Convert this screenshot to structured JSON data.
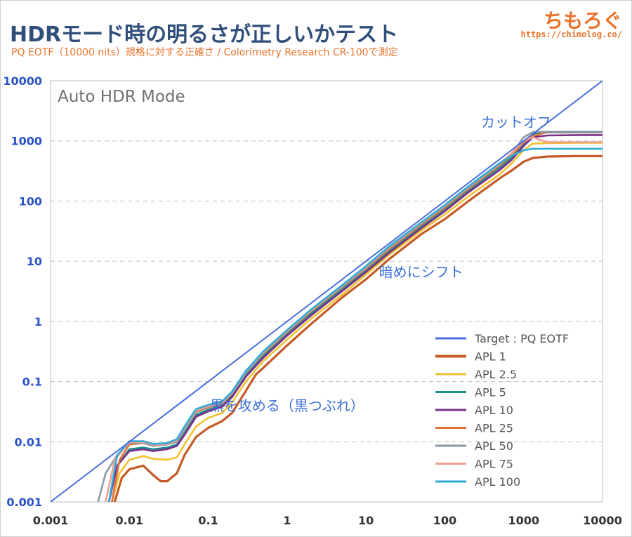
{
  "header": {
    "title": "HDRモード時の明るさが正しいかテスト",
    "subtitle": "PQ EOTF（10000 nits）規格に対する正確さ / Colorimetry Research CR-100で測定",
    "brand": "ちもろぐ",
    "brand_url": "https://chimolog.co/"
  },
  "colors": {
    "target": "#4a6fdc",
    "apl1": "#c45a25",
    "apl2_5": "#f2c12e",
    "apl5": "#1a8c8c",
    "apl10": "#7a2f8a",
    "apl25": "#e0733a",
    "apl50": "#8a98a8",
    "apl75": "#f0a090",
    "apl100": "#2eaad8",
    "annotation": "#3a6fd8",
    "tick": "#2a52c8"
  },
  "chart_data": {
    "type": "line",
    "panel_label": "Auto HDR Mode",
    "x_scale": "log",
    "y_scale": "log",
    "xlim": [
      0.001,
      10000
    ],
    "ylim": [
      0.001,
      10000
    ],
    "grid": true,
    "legend_position": "bottom-right",
    "x_ticks": [
      "0.001",
      "0.01",
      "0.1",
      "1",
      "10",
      "100",
      "1000",
      "10000"
    ],
    "y_ticks": [
      "0.001",
      "0.01",
      "0.1",
      "1",
      "10",
      "100",
      "1000",
      "10000"
    ],
    "annotations": [
      {
        "text": "カットオフ",
        "x": 800,
        "y": 1700
      },
      {
        "text": "暗めにシフト",
        "x": 50,
        "y": 5.5
      },
      {
        "text": "黒を攻める（黒つぶれ）",
        "x": 1.0,
        "y": 0.033
      }
    ],
    "series": [
      {
        "name": "Target : PQ EOTF",
        "key": "target",
        "points": [
          [
            0.001,
            0.001
          ],
          [
            10000,
            10000
          ]
        ]
      },
      {
        "name": "APL 1",
        "key": "apl1",
        "points": [
          [
            0.0065,
            0.001
          ],
          [
            0.008,
            0.0025
          ],
          [
            0.01,
            0.0035
          ],
          [
            0.015,
            0.004
          ],
          [
            0.02,
            0.0028
          ],
          [
            0.025,
            0.0022
          ],
          [
            0.03,
            0.0022
          ],
          [
            0.04,
            0.003
          ],
          [
            0.05,
            0.006
          ],
          [
            0.07,
            0.012
          ],
          [
            0.1,
            0.017
          ],
          [
            0.15,
            0.022
          ],
          [
            0.2,
            0.03
          ],
          [
            0.3,
            0.07
          ],
          [
            0.4,
            0.13
          ],
          [
            0.5,
            0.17
          ],
          [
            1,
            0.4
          ],
          [
            2,
            0.9
          ],
          [
            5,
            2.5
          ],
          [
            10,
            5
          ],
          [
            20,
            11
          ],
          [
            50,
            28
          ],
          [
            100,
            50
          ],
          [
            200,
            100
          ],
          [
            500,
            240
          ],
          [
            700,
            320
          ],
          [
            1000,
            450
          ],
          [
            1300,
            520
          ],
          [
            2000,
            550
          ],
          [
            5000,
            560
          ],
          [
            10000,
            560
          ]
        ]
      },
      {
        "name": "APL 2.5",
        "key": "apl2_5",
        "points": [
          [
            0.006,
            0.001
          ],
          [
            0.0075,
            0.003
          ],
          [
            0.01,
            0.005
          ],
          [
            0.015,
            0.0058
          ],
          [
            0.02,
            0.0052
          ],
          [
            0.03,
            0.005
          ],
          [
            0.04,
            0.0055
          ],
          [
            0.05,
            0.009
          ],
          [
            0.07,
            0.018
          ],
          [
            0.1,
            0.025
          ],
          [
            0.15,
            0.03
          ],
          [
            0.2,
            0.045
          ],
          [
            0.3,
            0.1
          ],
          [
            0.5,
            0.22
          ],
          [
            1,
            0.5
          ],
          [
            2,
            1.1
          ],
          [
            5,
            2.8
          ],
          [
            10,
            6
          ],
          [
            20,
            13
          ],
          [
            50,
            32
          ],
          [
            100,
            60
          ],
          [
            200,
            120
          ],
          [
            500,
            280
          ],
          [
            700,
            420
          ],
          [
            1000,
            700
          ],
          [
            1300,
            900
          ],
          [
            2000,
            920
          ],
          [
            5000,
            930
          ],
          [
            10000,
            930
          ]
        ]
      },
      {
        "name": "APL 5",
        "key": "apl5",
        "points": [
          [
            0.0055,
            0.001
          ],
          [
            0.007,
            0.004
          ],
          [
            0.01,
            0.0075
          ],
          [
            0.015,
            0.008
          ],
          [
            0.02,
            0.0075
          ],
          [
            0.03,
            0.008
          ],
          [
            0.04,
            0.009
          ],
          [
            0.05,
            0.014
          ],
          [
            0.07,
            0.028
          ],
          [
            0.1,
            0.034
          ],
          [
            0.15,
            0.04
          ],
          [
            0.2,
            0.06
          ],
          [
            0.3,
            0.13
          ],
          [
            0.5,
            0.27
          ],
          [
            1,
            0.62
          ],
          [
            2,
            1.35
          ],
          [
            5,
            3.4
          ],
          [
            10,
            7
          ],
          [
            20,
            15
          ],
          [
            50,
            38
          ],
          [
            100,
            72
          ],
          [
            200,
            150
          ],
          [
            500,
            360
          ],
          [
            700,
            520
          ],
          [
            1000,
            900
          ],
          [
            1300,
            1300
          ],
          [
            2000,
            1380
          ],
          [
            5000,
            1380
          ],
          [
            10000,
            1380
          ]
        ]
      },
      {
        "name": "APL 10",
        "key": "apl10",
        "points": [
          [
            0.0055,
            0.001
          ],
          [
            0.007,
            0.004
          ],
          [
            0.01,
            0.007
          ],
          [
            0.015,
            0.0075
          ],
          [
            0.02,
            0.007
          ],
          [
            0.03,
            0.0075
          ],
          [
            0.04,
            0.0085
          ],
          [
            0.05,
            0.013
          ],
          [
            0.07,
            0.026
          ],
          [
            0.1,
            0.032
          ],
          [
            0.15,
            0.038
          ],
          [
            0.2,
            0.055
          ],
          [
            0.3,
            0.12
          ],
          [
            0.5,
            0.25
          ],
          [
            1,
            0.58
          ],
          [
            2,
            1.25
          ],
          [
            5,
            3.2
          ],
          [
            10,
            6.6
          ],
          [
            20,
            14
          ],
          [
            50,
            35
          ],
          [
            100,
            68
          ],
          [
            200,
            140
          ],
          [
            500,
            330
          ],
          [
            700,
            480
          ],
          [
            1000,
            820
          ],
          [
            1300,
            1150
          ],
          [
            2000,
            1230
          ],
          [
            5000,
            1250
          ],
          [
            10000,
            1250
          ]
        ]
      },
      {
        "name": "APL 25",
        "key": "apl25",
        "points": [
          [
            0.006,
            0.001
          ],
          [
            0.0075,
            0.005
          ],
          [
            0.01,
            0.009
          ],
          [
            0.015,
            0.0095
          ],
          [
            0.02,
            0.0085
          ],
          [
            0.03,
            0.009
          ],
          [
            0.04,
            0.01
          ],
          [
            0.05,
            0.016
          ],
          [
            0.07,
            0.031
          ],
          [
            0.1,
            0.037
          ],
          [
            0.15,
            0.043
          ],
          [
            0.2,
            0.063
          ],
          [
            0.3,
            0.14
          ],
          [
            0.5,
            0.29
          ],
          [
            1,
            0.66
          ],
          [
            2,
            1.45
          ],
          [
            5,
            3.7
          ],
          [
            10,
            7.5
          ],
          [
            20,
            16
          ],
          [
            50,
            40
          ],
          [
            100,
            78
          ],
          [
            200,
            160
          ],
          [
            500,
            390
          ],
          [
            700,
            560
          ],
          [
            1000,
            950
          ],
          [
            1300,
            1200
          ],
          [
            2000,
            1400
          ],
          [
            5000,
            1400
          ],
          [
            10000,
            1400
          ]
        ]
      },
      {
        "name": "APL 50",
        "key": "apl50",
        "points": [
          [
            0.004,
            0.001
          ],
          [
            0.005,
            0.003
          ],
          [
            0.007,
            0.006
          ],
          [
            0.01,
            0.0095
          ],
          [
            0.015,
            0.0095
          ],
          [
            0.02,
            0.0085
          ],
          [
            0.03,
            0.009
          ],
          [
            0.04,
            0.01
          ],
          [
            0.05,
            0.016
          ],
          [
            0.07,
            0.032
          ],
          [
            0.1,
            0.038
          ],
          [
            0.15,
            0.044
          ],
          [
            0.2,
            0.064
          ],
          [
            0.3,
            0.14
          ],
          [
            0.5,
            0.3
          ],
          [
            1,
            0.68
          ],
          [
            2,
            1.5
          ],
          [
            5,
            3.8
          ],
          [
            10,
            7.8
          ],
          [
            20,
            17
          ],
          [
            50,
            42
          ],
          [
            100,
            82
          ],
          [
            200,
            168
          ],
          [
            500,
            410
          ],
          [
            700,
            600
          ],
          [
            1000,
            1150
          ],
          [
            1300,
            1400
          ],
          [
            2000,
            1420
          ],
          [
            5000,
            1420
          ],
          [
            10000,
            1420
          ]
        ]
      },
      {
        "name": "APL 75",
        "key": "apl75",
        "points": [
          [
            0.005,
            0.001
          ],
          [
            0.0065,
            0.005
          ],
          [
            0.01,
            0.0098
          ],
          [
            0.015,
            0.0098
          ],
          [
            0.02,
            0.0088
          ],
          [
            0.03,
            0.0092
          ],
          [
            0.04,
            0.0105
          ],
          [
            0.05,
            0.017
          ],
          [
            0.07,
            0.033
          ],
          [
            0.1,
            0.039
          ],
          [
            0.15,
            0.045
          ],
          [
            0.2,
            0.066
          ],
          [
            0.3,
            0.145
          ],
          [
            0.5,
            0.31
          ],
          [
            1,
            0.7
          ],
          [
            2,
            1.52
          ],
          [
            5,
            3.9
          ],
          [
            10,
            8
          ],
          [
            20,
            17.5
          ],
          [
            50,
            43
          ],
          [
            100,
            84
          ],
          [
            200,
            172
          ],
          [
            500,
            420
          ],
          [
            700,
            620
          ],
          [
            1000,
            1000
          ],
          [
            1300,
            1150
          ],
          [
            2000,
            950
          ],
          [
            5000,
            950
          ],
          [
            10000,
            950
          ]
        ]
      },
      {
        "name": "APL 100",
        "key": "apl100",
        "points": [
          [
            0.0055,
            0.001
          ],
          [
            0.007,
            0.006
          ],
          [
            0.01,
            0.0102
          ],
          [
            0.015,
            0.0102
          ],
          [
            0.02,
            0.0092
          ],
          [
            0.03,
            0.0095
          ],
          [
            0.04,
            0.011
          ],
          [
            0.05,
            0.018
          ],
          [
            0.07,
            0.035
          ],
          [
            0.1,
            0.041
          ],
          [
            0.15,
            0.047
          ],
          [
            0.2,
            0.068
          ],
          [
            0.3,
            0.15
          ],
          [
            0.5,
            0.32
          ],
          [
            1,
            0.72
          ],
          [
            2,
            1.57
          ],
          [
            5,
            4
          ],
          [
            10,
            8.3
          ],
          [
            20,
            18
          ],
          [
            50,
            44
          ],
          [
            100,
            86
          ],
          [
            200,
            176
          ],
          [
            500,
            430
          ],
          [
            700,
            560
          ],
          [
            1000,
            700
          ],
          [
            1300,
            740
          ],
          [
            2000,
            740
          ],
          [
            5000,
            740
          ],
          [
            10000,
            740
          ]
        ]
      }
    ]
  }
}
